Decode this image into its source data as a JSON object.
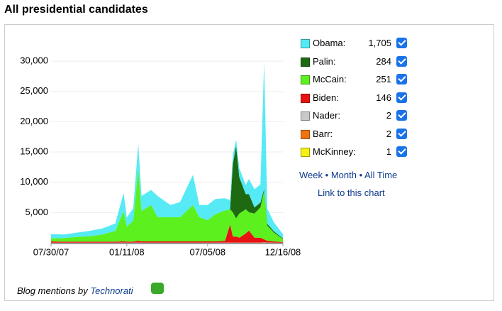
{
  "header": {
    "title": "All presidential candidates"
  },
  "chart_data": {
    "type": "area",
    "stacked": true,
    "grid": true,
    "x": [
      "07/30/07",
      "08/27/07",
      "09/24/07",
      "10/22/07",
      "11/19/07",
      "12/17/07",
      "01/04/08",
      "01/11/08",
      "01/25/08",
      "02/05/08",
      "02/12/08",
      "03/04/08",
      "03/18/08",
      "04/15/08",
      "05/06/08",
      "06/03/08",
      "06/17/08",
      "07/05/08",
      "07/22/08",
      "08/12/08",
      "08/23/08",
      "08/29/08",
      "09/05/08",
      "09/12/08",
      "09/26/08",
      "10/03/08",
      "10/15/08",
      "10/28/08",
      "11/05/08",
      "11/12/08",
      "11/26/08",
      "12/16/08"
    ],
    "xlim": [
      "07/30/07",
      "12/16/08"
    ],
    "xticks": [
      "07/30/07",
      "01/11/08",
      "07/05/08",
      "12/16/08"
    ],
    "ylim": [
      0,
      32000
    ],
    "yticks": [
      {
        "value": 5000,
        "label": "5,000"
      },
      {
        "value": 10000,
        "label": "10,000"
      },
      {
        "value": 15000,
        "label": "15,000"
      },
      {
        "value": 20000,
        "label": "20,000"
      },
      {
        "value": 25000,
        "label": "25,000"
      },
      {
        "value": 30000,
        "label": "30,000"
      }
    ],
    "series": [
      {
        "name": "Obama:",
        "color": "#55eaf5",
        "latest": {
          "value": 1705,
          "label": "1,705"
        },
        "values": [
          700,
          600,
          700,
          900,
          1000,
          1200,
          3000,
          1500,
          2000,
          4000,
          2500,
          2500,
          3500,
          2000,
          2500,
          5000,
          2000,
          2500,
          2500,
          2000,
          1500,
          1500,
          1000,
          1500,
          1500,
          2500,
          3000,
          3000,
          21000,
          2500,
          1500,
          700
        ]
      },
      {
        "name": "Palin:",
        "color": "#1d6a12",
        "latest": {
          "value": 284,
          "label": "284"
        },
        "values": [
          0,
          0,
          0,
          0,
          0,
          0,
          0,
          0,
          0,
          0,
          0,
          0,
          0,
          0,
          0,
          0,
          0,
          0,
          0,
          0,
          0,
          8000,
          12000,
          6000,
          2500,
          3000,
          1000,
          800,
          300,
          300,
          200,
          100
        ]
      },
      {
        "name": "McCain:",
        "color": "#5cf01f",
        "latest": {
          "value": 251,
          "label": "251"
        },
        "values": [
          500,
          600,
          800,
          900,
          1200,
          1800,
          5000,
          2500,
          3500,
          12000,
          5000,
          6000,
          4000,
          4000,
          4000,
          6000,
          4000,
          3500,
          4500,
          5000,
          2500,
          4000,
          3000,
          4000,
          4000,
          3000,
          4000,
          5000,
          8000,
          2500,
          1500,
          500
        ]
      },
      {
        "name": "Biden:",
        "color": "#e81212",
        "latest": {
          "value": 146,
          "label": "146"
        },
        "values": [
          200,
          150,
          150,
          150,
          150,
          150,
          200,
          150,
          150,
          300,
          200,
          200,
          200,
          200,
          200,
          200,
          200,
          200,
          200,
          300,
          3000,
          1000,
          1000,
          800,
          1500,
          2000,
          800,
          800,
          500,
          300,
          200,
          100
        ]
      },
      {
        "name": "Nader:",
        "color": "#c8c8c8",
        "latest": {
          "value": 2,
          "label": "2"
        },
        "values": [
          20,
          20,
          20,
          20,
          20,
          20,
          30,
          20,
          20,
          30,
          20,
          20,
          20,
          20,
          20,
          20,
          20,
          20,
          20,
          20,
          20,
          20,
          20,
          20,
          20,
          20,
          20,
          20,
          30,
          20,
          20,
          10
        ]
      },
      {
        "name": "Barr:",
        "color": "#f07312",
        "latest": {
          "value": 2,
          "label": "2"
        },
        "values": [
          10,
          10,
          10,
          10,
          10,
          10,
          10,
          10,
          10,
          10,
          10,
          10,
          10,
          10,
          10,
          10,
          10,
          10,
          10,
          20,
          20,
          20,
          20,
          20,
          20,
          20,
          20,
          20,
          30,
          20,
          10,
          10
        ]
      },
      {
        "name": "McKinney:",
        "color": "#f4f014",
        "latest": {
          "value": 1,
          "label": "1"
        },
        "values": [
          5,
          5,
          5,
          5,
          5,
          5,
          5,
          5,
          5,
          5,
          5,
          5,
          5,
          5,
          5,
          5,
          5,
          5,
          5,
          5,
          5,
          5,
          5,
          5,
          5,
          5,
          5,
          5,
          10,
          5,
          5,
          5
        ]
      }
    ]
  },
  "links": {
    "week": "Week",
    "separator": "•",
    "month": "Month",
    "all_time": "All Time",
    "chart_link": "Link to this chart"
  },
  "footer": {
    "prefix": "Blog mentions by",
    "source": "Technorati"
  }
}
